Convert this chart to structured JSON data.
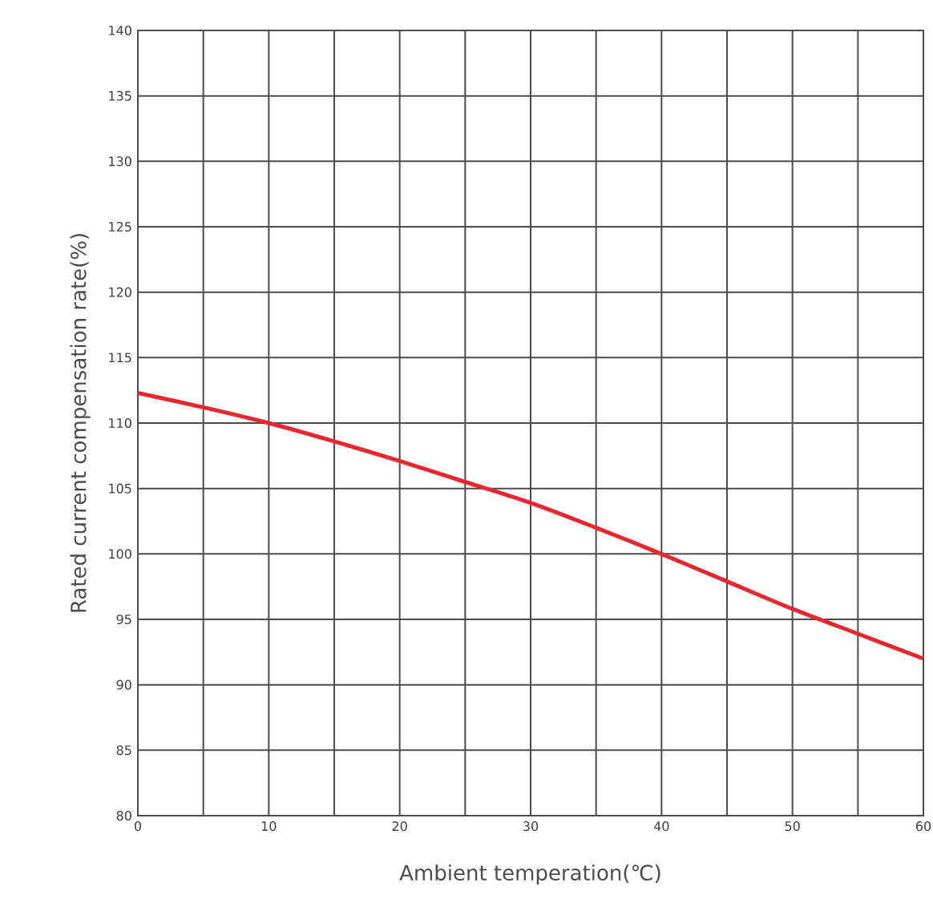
{
  "chart_data": {
    "type": "line",
    "xlabel": "Ambient temperation(℃)",
    "ylabel": "Rated current compensation rate(%)",
    "x": [
      0,
      5,
      10,
      15,
      20,
      25,
      30,
      35,
      40,
      45,
      50,
      55,
      60
    ],
    "series": [
      {
        "color": "#e8262e",
        "values": [
          112.3,
          111.2,
          110,
          108.6,
          107.1,
          105.5,
          103.9,
          102,
          100,
          97.9,
          95.8,
          93.9,
          92
        ]
      }
    ],
    "xlim": [
      0,
      60
    ],
    "xticks": [
      0,
      {
        "value": 5,
        "label": null
      },
      10,
      {
        "value": 15,
        "label": null
      },
      20,
      {
        "value": 25,
        "label": null
      },
      30,
      {
        "value": 35,
        "label": null
      },
      40,
      {
        "value": 45,
        "label": null
      },
      50,
      {
        "value": 55,
        "label": null
      },
      60
    ],
    "ylim": [
      80,
      140
    ],
    "yticks": [
      80,
      85,
      90,
      95,
      100,
      105,
      110,
      115,
      120,
      125,
      130,
      135,
      140
    ],
    "grid": true,
    "marker": "none",
    "line_style": "solid"
  }
}
